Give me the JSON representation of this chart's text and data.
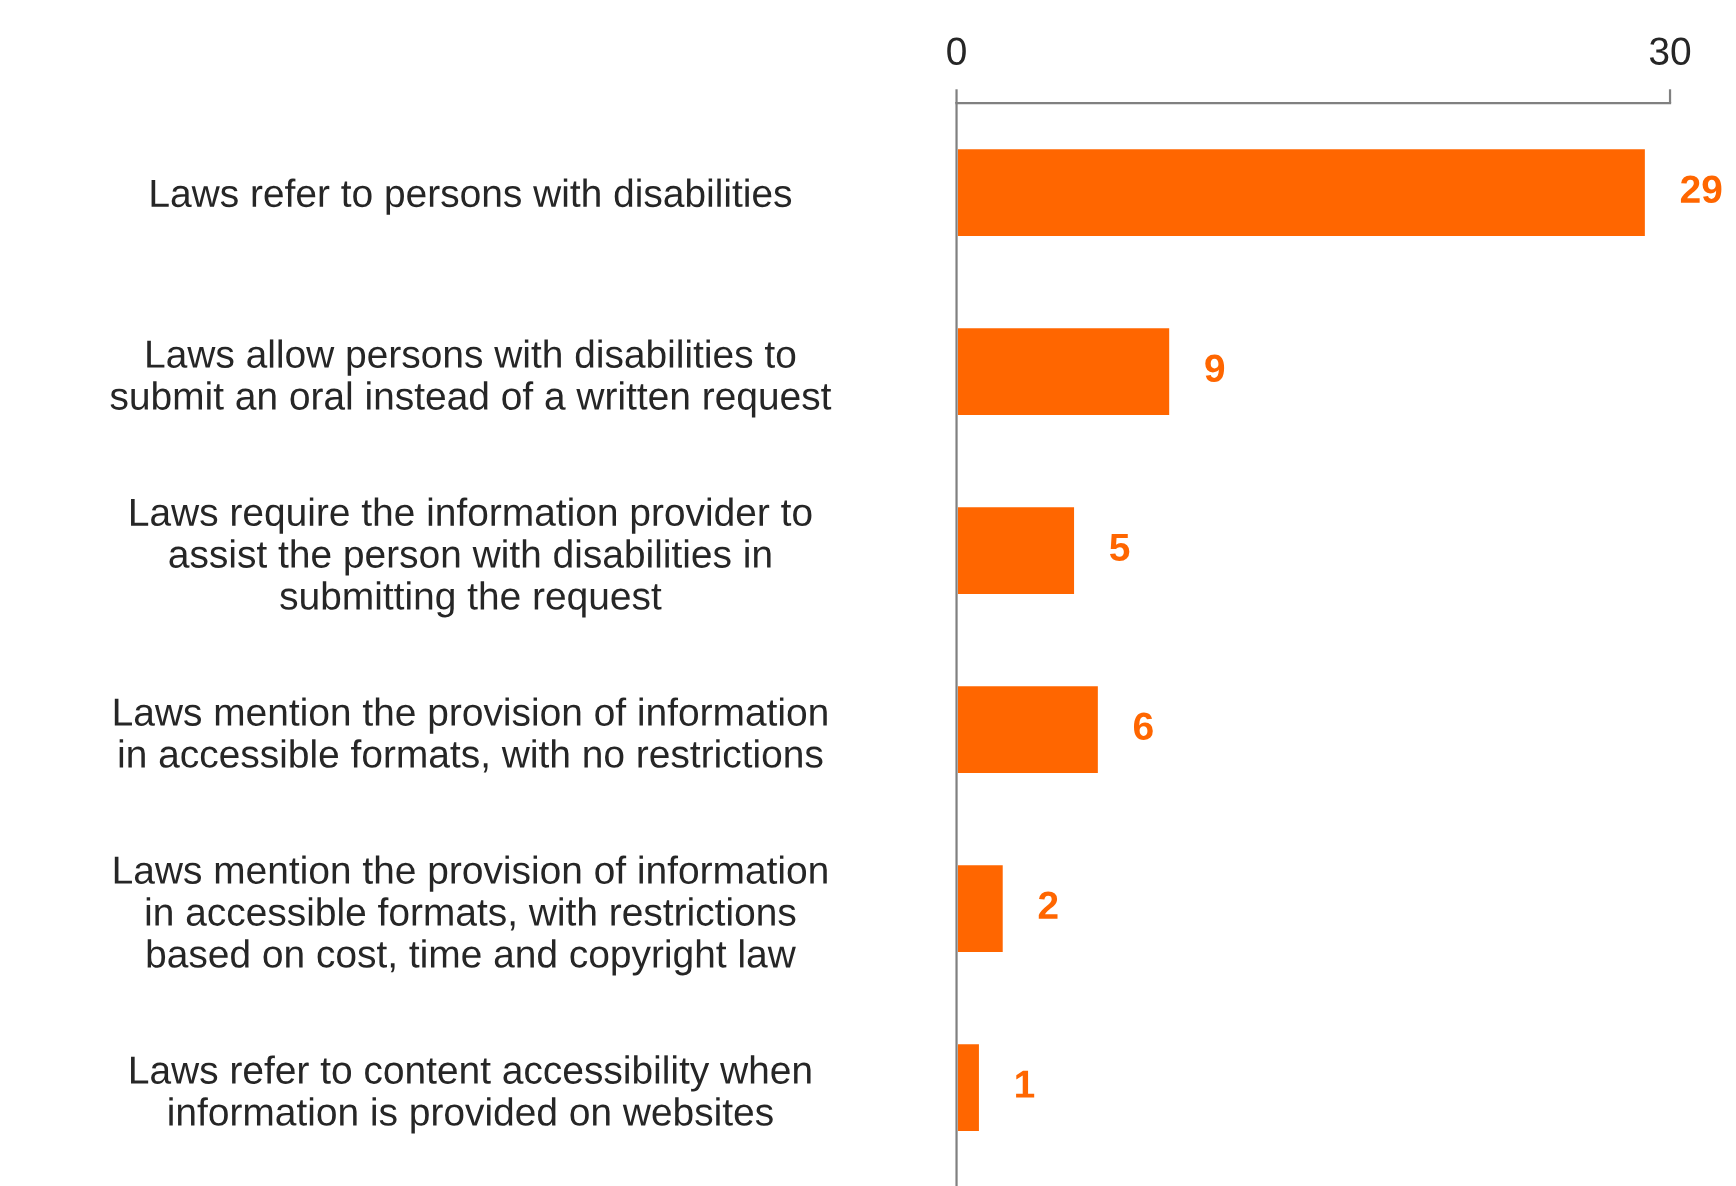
{
  "chart_data": {
    "type": "bar",
    "orientation": "horizontal",
    "categories": [
      "Laws refer to persons with disabilities",
      "Laws allow persons with disabilities to\nsubmit an oral instead of a written request",
      "Laws require the information provider to\nassist the person with disabilities in\nsubmitting the request",
      "Laws mention the provision of information\nin accessible formats, with no restrictions",
      "Laws mention the provision of information\nin accessible formats, with restrictions\nbased on cost, time and copyright law",
      "Laws refer to content accessibility when\ninformation is provided on websites"
    ],
    "values": [
      29,
      9,
      5,
      6,
      2,
      1
    ],
    "color": "#ff6600",
    "xlim": [
      0,
      30
    ],
    "xticks": [
      0,
      30
    ],
    "data_labels": true,
    "grid": false,
    "legend": false
  }
}
